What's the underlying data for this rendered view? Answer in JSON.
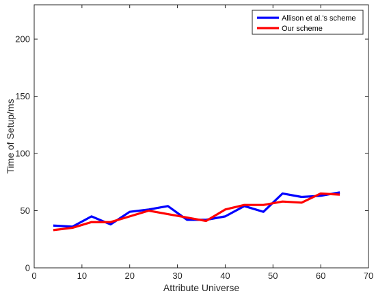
{
  "chart_data": {
    "type": "line",
    "title": "",
    "xlabel": "Attribute Universe",
    "ylabel": "Time of Setup/ms",
    "xlim": [
      0,
      70
    ],
    "ylim": [
      0,
      230
    ],
    "xticks": [
      0,
      10,
      20,
      30,
      40,
      50,
      60,
      70
    ],
    "yticks": [
      0,
      50,
      100,
      150,
      200
    ],
    "grid": false,
    "legend_position": "top-right",
    "x": [
      4,
      8,
      12,
      16,
      20,
      24,
      28,
      32,
      36,
      40,
      44,
      48,
      52,
      56,
      60,
      64
    ],
    "series": [
      {
        "name": "Allison et al.'s scheme",
        "color": "#0000ff",
        "values": [
          37,
          36,
          45,
          38,
          49,
          51,
          54,
          42,
          42,
          45,
          54,
          49,
          65,
          62,
          63,
          66
        ]
      },
      {
        "name": "Our scheme",
        "color": "#ff0000",
        "values": [
          33,
          35,
          40,
          40,
          45,
          50,
          47,
          44,
          41,
          51,
          55,
          55,
          58,
          57,
          65,
          64
        ]
      }
    ]
  }
}
